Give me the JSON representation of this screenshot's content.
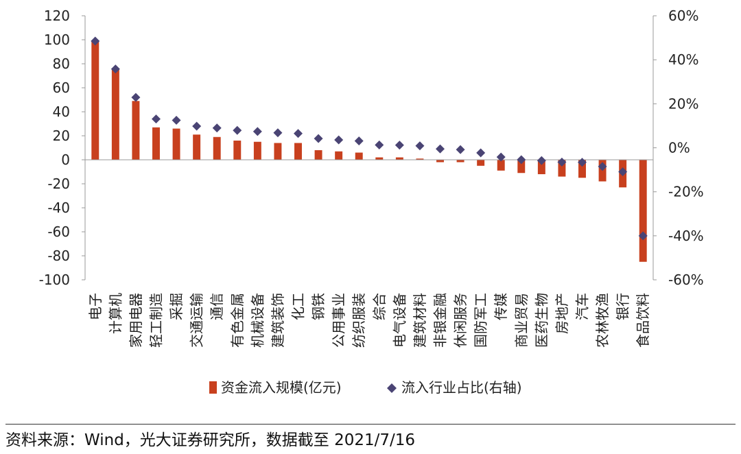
{
  "colors": {
    "bar": "#C8401E",
    "marker": "#4A4474",
    "axis": "#999999",
    "text": "#222222"
  },
  "chart_data": {
    "type": "bar",
    "categories": [
      "电子",
      "计算机",
      "家用电器",
      "轻工制造",
      "采掘",
      "交通运输",
      "通信",
      "有色金属",
      "机械设备",
      "建筑装饰",
      "化工",
      "钢铁",
      "公用事业",
      "纺织服装",
      "综合",
      "电气设备",
      "建筑材料",
      "非银金融",
      "休闲服务",
      "国防军工",
      "传媒",
      "商业贸易",
      "医药生物",
      "房地产",
      "汽车",
      "农林牧渔",
      "银行",
      "食品饮料"
    ],
    "series": [
      {
        "name": "资金流入规模(亿元)",
        "type": "bar",
        "axis": "left",
        "values": [
          99,
          76,
          49,
          27,
          26,
          21,
          19,
          16,
          15,
          14,
          14,
          8,
          7,
          6,
          2,
          2,
          1,
          -2,
          -2,
          -5,
          -9,
          -11,
          -12,
          -14,
          -15,
          -18,
          -23,
          -85
        ]
      },
      {
        "name": "流入行业占比(右轴)",
        "type": "scatter",
        "axis": "right",
        "marker": "diamond",
        "values": [
          48.5,
          35.8,
          22.9,
          13.1,
          12.5,
          9.8,
          9.0,
          7.9,
          7.4,
          6.8,
          6.5,
          4.2,
          3.6,
          3.1,
          1.3,
          1.2,
          0.9,
          -0.5,
          -0.8,
          -2.3,
          -4.2,
          -5.4,
          -5.8,
          -6.5,
          -6.6,
          -8.5,
          -10.9,
          -40.0
        ]
      }
    ],
    "y_left": {
      "ylim": [
        -100,
        120
      ],
      "ticks": [
        120,
        100,
        80,
        60,
        40,
        20,
        0,
        -20,
        -40,
        -60,
        -80,
        -100
      ]
    },
    "y_right": {
      "ylim": [
        -60,
        60
      ],
      "ticks": [
        "60%",
        "40%",
        "20%",
        "0%",
        "-20%",
        "-40%",
        "-60%"
      ]
    },
    "legend": {
      "position": "bottom",
      "items": [
        "资金流入规模(亿元)",
        "流入行业占比(右轴)"
      ]
    }
  },
  "source": "资料来源：Wind，光大证券研究所，数据截至 2021/7/16"
}
